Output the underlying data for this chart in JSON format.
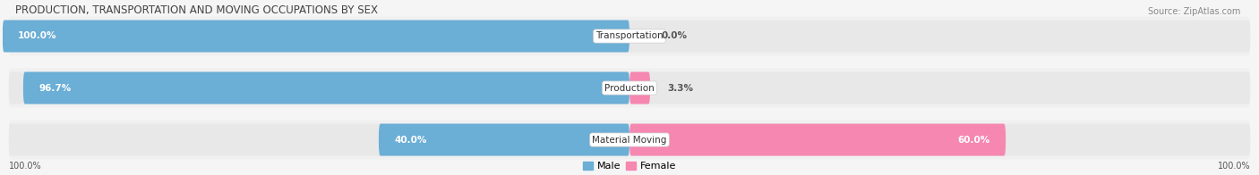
{
  "title": "PRODUCTION, TRANSPORTATION AND MOVING OCCUPATIONS BY SEX",
  "source": "Source: ZipAtlas.com",
  "categories": [
    "Transportation",
    "Production",
    "Material Moving"
  ],
  "male_pct": [
    100.0,
    96.7,
    40.0
  ],
  "female_pct": [
    0.0,
    3.3,
    60.0
  ],
  "male_color": "#6baed6",
  "female_color": "#f687b0",
  "male_color_light": "#b8d4eb",
  "bar_bg_color": "#e8e8e8",
  "row_bg_color": "#f0f0f0",
  "title_fontsize": 8.5,
  "label_fontsize": 7.5,
  "category_fontsize": 7.5,
  "legend_fontsize": 8,
  "source_fontsize": 7,
  "background_color": "#f5f5f5",
  "white": "#ffffff"
}
